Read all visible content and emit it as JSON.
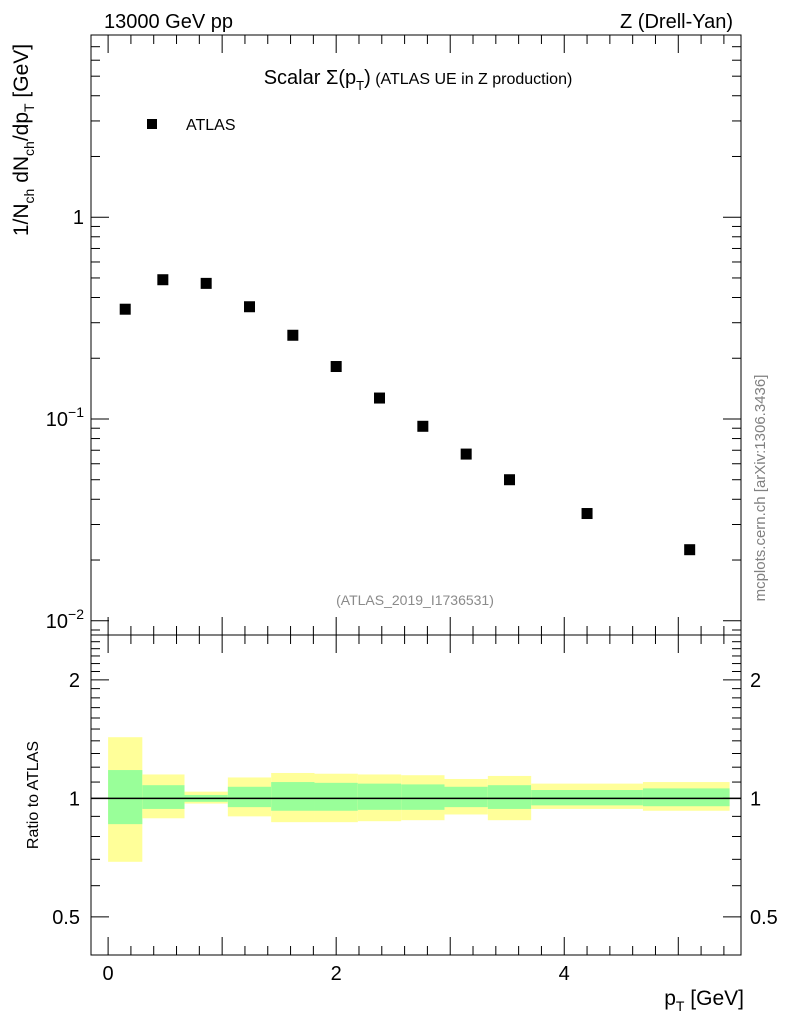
{
  "header": {
    "left": "13000 GeV pp",
    "right": "Z (Drell-Yan)"
  },
  "side_label": "mcplots.cern.ch [arXiv:1306.3436]",
  "chart_data": [
    {
      "type": "scatter",
      "title": "Scalar Σ(p_T) (ATLAS UE in Z production)",
      "title_parts": {
        "main": "Scalar",
        "sigma": "Σ(p",
        "sub": "T",
        "close": ")",
        "rest": "(ATLAS UE in Z production)"
      },
      "analysis_id": "(ATLAS_2019_I1736531)",
      "ylabel_parts": {
        "a": "1/N",
        "a_sub": "ch",
        "b": " dN",
        "b_sub": "ch",
        "c": "/dp",
        "c_sub": "T",
        "d": " [GeV]"
      },
      "y_scale": "log",
      "ylim": [
        0.0085,
        8
      ],
      "xlim": [
        -0.15,
        5.55
      ],
      "yticks": [
        {
          "value": 1,
          "label": "1"
        },
        {
          "value": 0.1,
          "label": "10",
          "exp": "−1"
        },
        {
          "value": 0.01,
          "label": "10",
          "exp": "−2"
        }
      ],
      "legend": {
        "label": "ATLAS",
        "position": "top-left"
      },
      "series": [
        {
          "name": "ATLAS",
          "x": [
            0.15,
            0.48,
            0.86,
            1.24,
            1.62,
            2.0,
            2.38,
            2.76,
            3.14,
            3.52,
            4.2,
            5.1
          ],
          "y": [
            0.35,
            0.49,
            0.47,
            0.36,
            0.26,
            0.182,
            0.127,
            0.092,
            0.067,
            0.05,
            0.034,
            0.0225
          ]
        }
      ]
    },
    {
      "type": "area",
      "ylabel": "Ratio to ATLAS",
      "xlabel_parts": {
        "main": "p",
        "sub": "T",
        "rest": " [GeV]"
      },
      "y_scale": "log",
      "ylim": [
        0.4,
        2.6
      ],
      "xlim": [
        -0.15,
        5.55
      ],
      "xticks": [
        0,
        2,
        4
      ],
      "yticks": [
        {
          "value": 2,
          "label": "2"
        },
        {
          "value": 1,
          "label": "1"
        },
        {
          "value": 0.5,
          "label": "0.5"
        }
      ],
      "bins": [
        {
          "x0": 0.0,
          "x1": 0.3,
          "yellow": [
            0.69,
            1.43
          ],
          "green": [
            0.86,
            1.18
          ]
        },
        {
          "x0": 0.3,
          "x1": 0.67,
          "yellow": [
            0.89,
            1.15
          ],
          "green": [
            0.94,
            1.08
          ]
        },
        {
          "x0": 0.67,
          "x1": 1.05,
          "yellow": [
            0.97,
            1.04
          ],
          "green": [
            0.98,
            1.02
          ]
        },
        {
          "x0": 1.05,
          "x1": 1.43,
          "yellow": [
            0.9,
            1.13
          ],
          "green": [
            0.95,
            1.07
          ]
        },
        {
          "x0": 1.43,
          "x1": 1.81,
          "yellow": [
            0.87,
            1.16
          ],
          "green": [
            0.93,
            1.1
          ]
        },
        {
          "x0": 1.81,
          "x1": 2.19,
          "yellow": [
            0.87,
            1.155
          ],
          "green": [
            0.93,
            1.095
          ]
        },
        {
          "x0": 2.19,
          "x1": 2.57,
          "yellow": [
            0.875,
            1.15
          ],
          "green": [
            0.935,
            1.09
          ]
        },
        {
          "x0": 2.57,
          "x1": 2.95,
          "yellow": [
            0.88,
            1.145
          ],
          "green": [
            0.935,
            1.085
          ]
        },
        {
          "x0": 2.95,
          "x1": 3.33,
          "yellow": [
            0.91,
            1.12
          ],
          "green": [
            0.95,
            1.07
          ]
        },
        {
          "x0": 3.33,
          "x1": 3.71,
          "yellow": [
            0.88,
            1.14
          ],
          "green": [
            0.94,
            1.08
          ]
        },
        {
          "x0": 3.71,
          "x1": 4.69,
          "yellow": [
            0.94,
            1.09
          ],
          "green": [
            0.96,
            1.05
          ]
        },
        {
          "x0": 4.69,
          "x1": 5.45,
          "yellow": [
            0.93,
            1.1
          ],
          "green": [
            0.955,
            1.06
          ]
        }
      ],
      "reference_line": 1
    }
  ],
  "colors": {
    "yellow_band": "#ffff99",
    "green_band": "#99ff99",
    "marker": "#000000",
    "side_label": "#808080",
    "analysis_id": "#8a8a8a"
  }
}
